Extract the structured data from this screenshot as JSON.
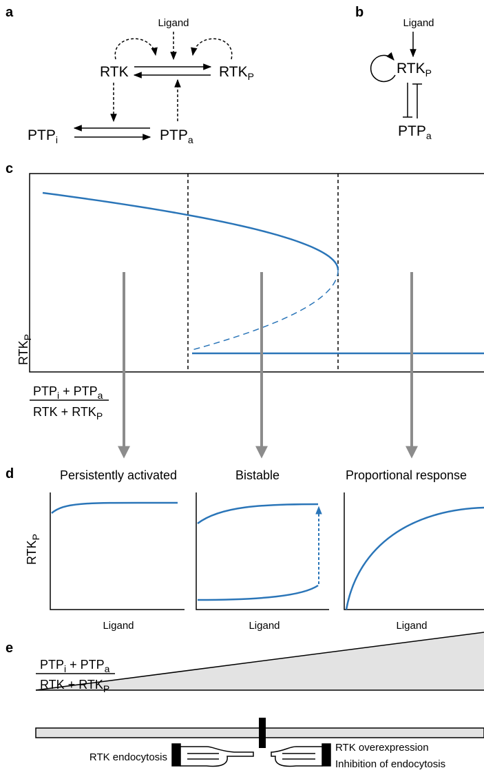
{
  "panel_a": {
    "label": "a",
    "ligand": "Ligand",
    "rtk": "RTK",
    "rtkp": {
      "main": "RTK",
      "sub": "P"
    },
    "ptpi": {
      "main": "PTP",
      "sub": "i"
    },
    "ptpa": {
      "main": "PTP",
      "sub": "a"
    }
  },
  "panel_b": {
    "label": "b",
    "ligand": "Ligand",
    "rtkp": {
      "main": "RTK",
      "sub": "P"
    },
    "ptpa": {
      "main": "PTP",
      "sub": "a"
    }
  },
  "panel_c": {
    "label": "c",
    "y_label": {
      "main": "RTK",
      "sub": "P"
    },
    "ratio": {
      "numerator": [
        {
          "main": "PTP",
          "sub": "i"
        },
        {
          "main": "+ PTP",
          "sub": "a"
        }
      ],
      "denominator": {
        "main": "RTK + RTK",
        "sub": "P"
      }
    }
  },
  "panel_d": {
    "label": "d",
    "y_label": {
      "main": "RTK",
      "sub": "P"
    },
    "plots": [
      {
        "title": "Persistently activated",
        "x_label": "Ligand"
      },
      {
        "title": "Bistable",
        "x_label": "Ligand"
      },
      {
        "title": "Proportional response",
        "x_label": "Ligand"
      }
    ]
  },
  "panel_e": {
    "label": "e",
    "ratio": {
      "numerator": [
        {
          "main": "PTP",
          "sub": "i"
        },
        {
          "main": "+ PTP",
          "sub": "a"
        }
      ],
      "denominator": {
        "main": "RTK + RTK",
        "sub": "P"
      }
    },
    "left_text": "RTK endocytosis",
    "right_text": [
      "RTK overexpression",
      "Inhibition of endocytosis"
    ]
  }
}
